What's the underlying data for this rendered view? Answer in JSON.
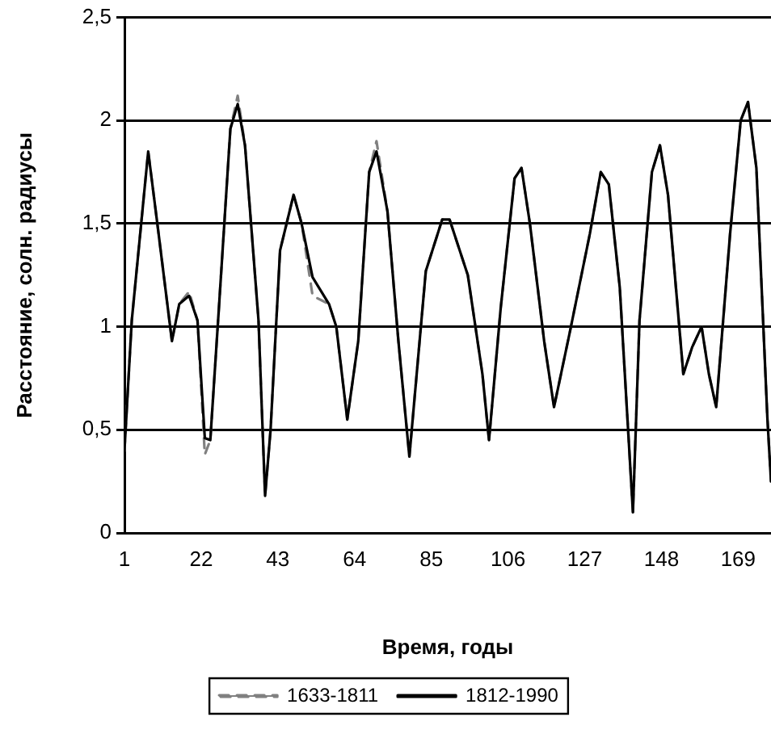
{
  "chart_data": {
    "type": "line",
    "xlabel": "Время, годы",
    "ylabel": "Расстояние, солн. радиусы",
    "xlim": [
      1,
      178
    ],
    "xticks": [
      1,
      22,
      43,
      64,
      85,
      106,
      127,
      148,
      169
    ],
    "ylim": [
      0,
      2.5
    ],
    "yticks": [
      0,
      {
        "value": 0.5,
        "label": "0,5"
      },
      1,
      {
        "value": 1.5,
        "label": "1,5"
      },
      2,
      {
        "value": 2.5,
        "label": "2,5"
      }
    ],
    "grid": "y",
    "legend": "bottom",
    "marker": "none",
    "series": [
      {
        "name": "1812-1990",
        "color": "#000000",
        "line_style": "solid",
        "x": [
          1,
          3,
          7.5,
          10,
          14,
          16,
          18.7,
          21,
          23,
          24.5,
          27,
          30,
          32,
          34,
          37.7,
          39.5,
          41,
          43.6,
          47.3,
          49.5,
          52.5,
          57,
          59,
          62,
          65,
          68,
          70,
          73,
          76,
          79,
          83.5,
          88,
          90,
          95,
          99,
          100.8,
          104,
          107.8,
          109.7,
          112,
          115.9,
          118.6,
          123,
          128.4,
          131.4,
          133.6,
          136.6,
          140.2,
          142,
          145.4,
          147.6,
          149.8,
          154,
          156.4,
          159,
          161,
          163,
          166.8,
          169.7,
          171.7,
          174,
          177,
          178
        ],
        "values": [
          0.4,
          1.03,
          1.85,
          1.5,
          0.93,
          1.11,
          1.15,
          1.03,
          0.46,
          0.45,
          1.13,
          1.96,
          2.08,
          1.88,
          1.03,
          0.18,
          0.5,
          1.37,
          1.64,
          1.5,
          1.24,
          1.11,
          1.0,
          0.55,
          0.93,
          1.75,
          1.85,
          1.56,
          0.93,
          0.37,
          1.27,
          1.52,
          1.52,
          1.25,
          0.77,
          0.45,
          1.09,
          1.72,
          1.77,
          1.5,
          0.93,
          0.61,
          0.98,
          1.45,
          1.75,
          1.69,
          1.19,
          0.1,
          1.03,
          1.75,
          1.88,
          1.64,
          0.77,
          0.9,
          1.0,
          0.77,
          0.61,
          1.45,
          2.0,
          2.09,
          1.77,
          0.56,
          0.25
        ]
      },
      {
        "name": "1633-1811",
        "color": "#808080",
        "line_style": "dashed",
        "x": [
          1,
          3,
          7.5,
          10,
          14,
          16,
          18.7,
          21,
          23,
          24.5,
          27,
          30,
          32,
          34,
          37.7,
          39.5,
          41,
          43.6,
          47.3,
          49.5,
          52.5,
          57,
          59,
          62,
          65,
          68,
          70,
          73,
          76,
          79,
          83.5,
          88,
          90,
          95,
          99,
          100.8,
          104,
          107.8,
          109.7,
          112,
          115.9,
          118.6,
          123,
          128.4,
          131.4,
          133.6,
          136.6,
          140.2,
          142,
          145.4,
          147.6,
          149.8,
          154,
          156.4,
          159,
          161,
          163,
          166.8,
          169.7,
          171.7,
          174,
          177,
          178
        ],
        "values": [
          0.4,
          1.03,
          1.85,
          1.5,
          0.93,
          1.11,
          1.17,
          1.03,
          0.38,
          0.45,
          1.13,
          1.96,
          2.12,
          1.88,
          1.03,
          0.18,
          0.5,
          1.37,
          1.64,
          1.5,
          1.15,
          1.11,
          1.0,
          0.55,
          0.93,
          1.75,
          1.9,
          1.56,
          0.93,
          0.37,
          1.27,
          1.52,
          1.52,
          1.25,
          0.77,
          0.45,
          1.09,
          1.72,
          1.77,
          1.5,
          0.93,
          0.61,
          0.98,
          1.45,
          1.75,
          1.69,
          1.19,
          0.1,
          1.03,
          1.75,
          1.88,
          1.64,
          0.77,
          0.9,
          1.0,
          0.77,
          0.61,
          1.45,
          2.0,
          2.09,
          1.77,
          0.56,
          0.25
        ]
      }
    ]
  }
}
